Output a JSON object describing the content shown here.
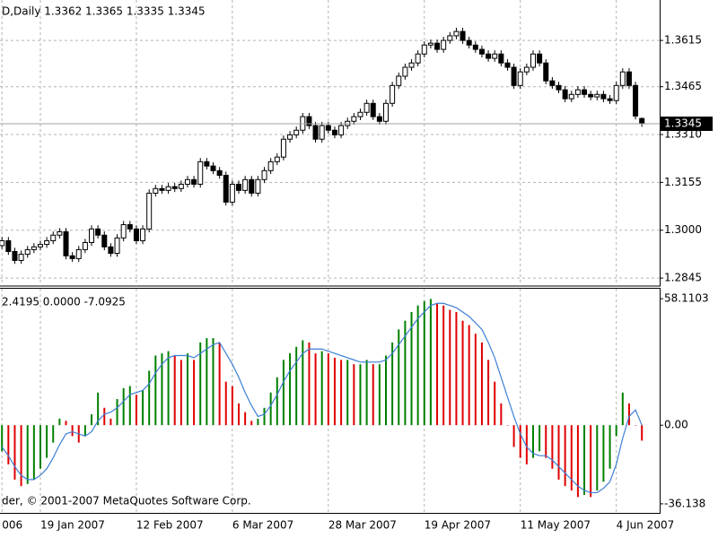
{
  "chart_data": [
    {
      "type": "candlestick",
      "title": "D,Daily  1.3362 1.3365 1.3335 1.3345",
      "open": [
        1.295,
        1.2966,
        1.2931,
        1.2902,
        1.2922,
        1.2937,
        1.2946,
        1.2954,
        1.2966,
        1.2984,
        1.2995,
        1.2917,
        1.2908,
        1.2937,
        1.296,
        1.3004,
        1.2984,
        1.2946,
        1.2925,
        1.2975,
        1.3018,
        1.3004,
        1.2966,
        1.3004,
        1.312,
        1.3135,
        1.3129,
        1.3141,
        1.3135,
        1.3149,
        1.3164,
        1.3149,
        1.3222,
        1.3208,
        1.3193,
        1.3178,
        1.3091,
        1.3149,
        1.3129,
        1.3164,
        1.312,
        1.3164,
        1.3193,
        1.3222,
        1.3237,
        1.3295,
        1.3309,
        1.3324,
        1.3368,
        1.3339,
        1.3295,
        1.3339,
        1.3324,
        1.3309,
        1.3339,
        1.3353,
        1.3368,
        1.3382,
        1.3411,
        1.3368,
        1.3353,
        1.3411,
        1.3469,
        1.3499,
        1.3528,
        1.3542,
        1.3571,
        1.36,
        1.3606,
        1.3586,
        1.3615,
        1.363,
        1.3644,
        1.3615,
        1.36,
        1.3586,
        1.3571,
        1.3557,
        1.3571,
        1.3542,
        1.3528,
        1.3469,
        1.3513,
        1.3528,
        1.3571,
        1.3542,
        1.3484,
        1.3469,
        1.3455,
        1.3426,
        1.344,
        1.3455,
        1.344,
        1.3432,
        1.344,
        1.3426,
        1.342,
        1.3469,
        1.3513,
        1.3469,
        1.3362
      ],
      "high": [
        1.2978,
        1.2978,
        1.2943,
        1.2934,
        1.2949,
        1.2958,
        1.2966,
        1.2978,
        1.2996,
        1.3007,
        1.3007,
        1.2929,
        1.2949,
        1.2972,
        1.3016,
        1.3016,
        1.2996,
        1.2958,
        1.2987,
        1.303,
        1.303,
        1.3016,
        1.3016,
        1.3132,
        1.3147,
        1.3147,
        1.3153,
        1.3153,
        1.3161,
        1.3176,
        1.3176,
        1.3234,
        1.3234,
        1.322,
        1.3205,
        1.319,
        1.3161,
        1.3161,
        1.3176,
        1.3176,
        1.3176,
        1.3205,
        1.3234,
        1.3249,
        1.3307,
        1.3321,
        1.3336,
        1.338,
        1.338,
        1.3351,
        1.3351,
        1.3351,
        1.3336,
        1.3351,
        1.3365,
        1.338,
        1.3394,
        1.3423,
        1.3423,
        1.338,
        1.3423,
        1.3481,
        1.3511,
        1.354,
        1.3554,
        1.3583,
        1.3612,
        1.3618,
        1.3618,
        1.3627,
        1.3642,
        1.3656,
        1.3656,
        1.3627,
        1.3612,
        1.3598,
        1.3583,
        1.3583,
        1.3583,
        1.3554,
        1.354,
        1.3525,
        1.354,
        1.3583,
        1.3583,
        1.3554,
        1.3496,
        1.3481,
        1.3467,
        1.3452,
        1.3467,
        1.3467,
        1.3452,
        1.3452,
        1.3452,
        1.3438,
        1.3481,
        1.3525,
        1.3525,
        1.3481,
        1.3365
      ],
      "low": [
        1.2939,
        1.292,
        1.2891,
        1.2891,
        1.2911,
        1.2926,
        1.2935,
        1.2943,
        1.2955,
        1.2973,
        1.2906,
        1.2897,
        1.2897,
        1.2926,
        1.2949,
        1.2973,
        1.2935,
        1.2914,
        1.2914,
        1.2964,
        1.2993,
        1.2955,
        1.2955,
        1.2993,
        1.3109,
        1.3118,
        1.3118,
        1.3124,
        1.3124,
        1.3138,
        1.3138,
        1.3138,
        1.3197,
        1.3182,
        1.3167,
        1.308,
        1.308,
        1.3118,
        1.3118,
        1.3109,
        1.3109,
        1.3153,
        1.3182,
        1.3211,
        1.3226,
        1.3284,
        1.3298,
        1.3313,
        1.3328,
        1.3284,
        1.3284,
        1.3313,
        1.3298,
        1.3298,
        1.3328,
        1.3342,
        1.3357,
        1.3371,
        1.3357,
        1.3342,
        1.3342,
        1.34,
        1.3458,
        1.3488,
        1.3517,
        1.3531,
        1.356,
        1.3589,
        1.3575,
        1.3575,
        1.3604,
        1.3619,
        1.3604,
        1.3589,
        1.3575,
        1.356,
        1.3546,
        1.3546,
        1.3531,
        1.3517,
        1.3458,
        1.3458,
        1.3502,
        1.3517,
        1.3531,
        1.3473,
        1.3458,
        1.3444,
        1.3415,
        1.3415,
        1.3429,
        1.3429,
        1.3421,
        1.3421,
        1.3415,
        1.3409,
        1.3409,
        1.3458,
        1.3458,
        1.3359,
        1.3335
      ],
      "close": [
        1.2966,
        1.2931,
        1.2902,
        1.2922,
        1.2937,
        1.2946,
        1.2954,
        1.2966,
        1.2984,
        1.2995,
        1.2917,
        1.2908,
        1.2937,
        1.296,
        1.3004,
        1.2984,
        1.2946,
        1.2925,
        1.2975,
        1.3018,
        1.3004,
        1.2966,
        1.3004,
        1.312,
        1.3135,
        1.3129,
        1.3141,
        1.3135,
        1.3149,
        1.3164,
        1.3149,
        1.3222,
        1.3208,
        1.3193,
        1.3178,
        1.3091,
        1.3149,
        1.3129,
        1.3164,
        1.312,
        1.3164,
        1.3193,
        1.3222,
        1.3237,
        1.3295,
        1.3309,
        1.3324,
        1.3368,
        1.3339,
        1.3295,
        1.3339,
        1.3324,
        1.3309,
        1.3339,
        1.3353,
        1.3368,
        1.3382,
        1.3411,
        1.3368,
        1.3353,
        1.3411,
        1.3469,
        1.3499,
        1.3528,
        1.3542,
        1.3571,
        1.36,
        1.3606,
        1.3586,
        1.3615,
        1.363,
        1.3644,
        1.3615,
        1.36,
        1.3586,
        1.3571,
        1.3557,
        1.3571,
        1.3542,
        1.3528,
        1.3469,
        1.3513,
        1.3528,
        1.3571,
        1.3542,
        1.3484,
        1.3469,
        1.3455,
        1.3426,
        1.344,
        1.3455,
        1.344,
        1.3432,
        1.344,
        1.3426,
        1.342,
        1.3469,
        1.3513,
        1.3469,
        1.337,
        1.3345
      ],
      "ylim": [
        1.2822,
        1.3746
      ],
      "yticks": [
        1.2845,
        {
          "value": 1.3,
          "label": "1.3000"
        },
        1.3155,
        {
          "value": 1.331,
          "label": "1.3310"
        },
        1.3465,
        1.3615
      ],
      "grid": true,
      "last_price_line": true,
      "color": "#000000"
    },
    {
      "type": "bar",
      "title": "2.4195 0.0000 -7.0925",
      "annotation": "der, © 2001-2007 MetaQuotes Software Corp.",
      "categories": [
        "006",
        null,
        null,
        null,
        null,
        null,
        "19 Jan 2007",
        null,
        null,
        null,
        null,
        null,
        null,
        null,
        null,
        null,
        null,
        null,
        null,
        null,
        null,
        "12 Feb 2007",
        null,
        null,
        null,
        null,
        null,
        null,
        null,
        null,
        null,
        null,
        null,
        null,
        null,
        null,
        "6 Mar 2007",
        null,
        null,
        null,
        null,
        null,
        null,
        null,
        null,
        null,
        null,
        null,
        null,
        null,
        null,
        "28 Mar 2007",
        null,
        null,
        null,
        null,
        null,
        null,
        null,
        null,
        null,
        null,
        null,
        null,
        null,
        null,
        "19 Apr 2007",
        null,
        null,
        null,
        null,
        null,
        null,
        null,
        null,
        null,
        null,
        null,
        null,
        null,
        null,
        "11 May 2007",
        null,
        null,
        null,
        null,
        null,
        null,
        null,
        null,
        null,
        null,
        null,
        null,
        null,
        null,
        "4 Jun 2007",
        null,
        null,
        null,
        null
      ],
      "values": [
        -12,
        -18,
        -25,
        -28,
        -27,
        -25,
        -20,
        -15,
        -8,
        3,
        2,
        -5,
        -8,
        -5,
        5,
        15,
        8,
        3,
        12,
        17,
        18,
        14,
        16,
        25,
        32,
        33,
        34,
        32,
        30,
        33,
        30,
        38,
        40,
        40,
        38,
        20,
        18,
        10,
        6,
        2,
        3,
        8,
        15,
        22,
        30,
        33,
        36,
        39,
        38,
        33,
        34,
        33,
        31,
        30,
        30,
        28,
        28,
        30,
        28,
        28,
        32,
        38,
        44,
        48,
        52,
        55,
        57,
        58,
        56,
        55,
        53,
        52,
        48,
        46,
        42,
        38,
        30,
        20,
        10,
        0,
        -10,
        -15,
        -18,
        -15,
        -12,
        -15,
        -20,
        -25,
        -28,
        -30,
        -33,
        -32,
        -33,
        -30,
        -26,
        -20,
        -5,
        15,
        10,
        0,
        -7.0925
      ],
      "line_values": [
        -10,
        -14,
        -19,
        -23,
        -25,
        -25,
        -23,
        -20,
        -15,
        -9,
        -4,
        -3,
        -4,
        -5,
        -3,
        2,
        5,
        6,
        8,
        11,
        14,
        15,
        16,
        19,
        24,
        28,
        31,
        32,
        32,
        32,
        31,
        33,
        35,
        37,
        38,
        33,
        28,
        22,
        15,
        9,
        4,
        5,
        9,
        14,
        20,
        25,
        29,
        33,
        35,
        35,
        35,
        34,
        33,
        32,
        31,
        30,
        29,
        29,
        29,
        29,
        30,
        33,
        37,
        41,
        45,
        49,
        52,
        55,
        56,
        56,
        55,
        54,
        52,
        50,
        47,
        44,
        38,
        31,
        22,
        13,
        4,
        -4,
        -10,
        -13,
        -14,
        -14,
        -16,
        -19,
        -22,
        -25,
        -28,
        -30,
        -31,
        -31,
        -29,
        -26,
        -18,
        -6,
        4,
        7,
        0
      ],
      "up_color": "#008000",
      "down_color": "#e00000",
      "line_color": "#3d7fd6",
      "ylim": [
        -40.3,
        62.7
      ],
      "yticks": [
        -36.138,
        {
          "value": 0,
          "label": "0.00"
        },
        58.1103
      ],
      "grid": false
    }
  ]
}
